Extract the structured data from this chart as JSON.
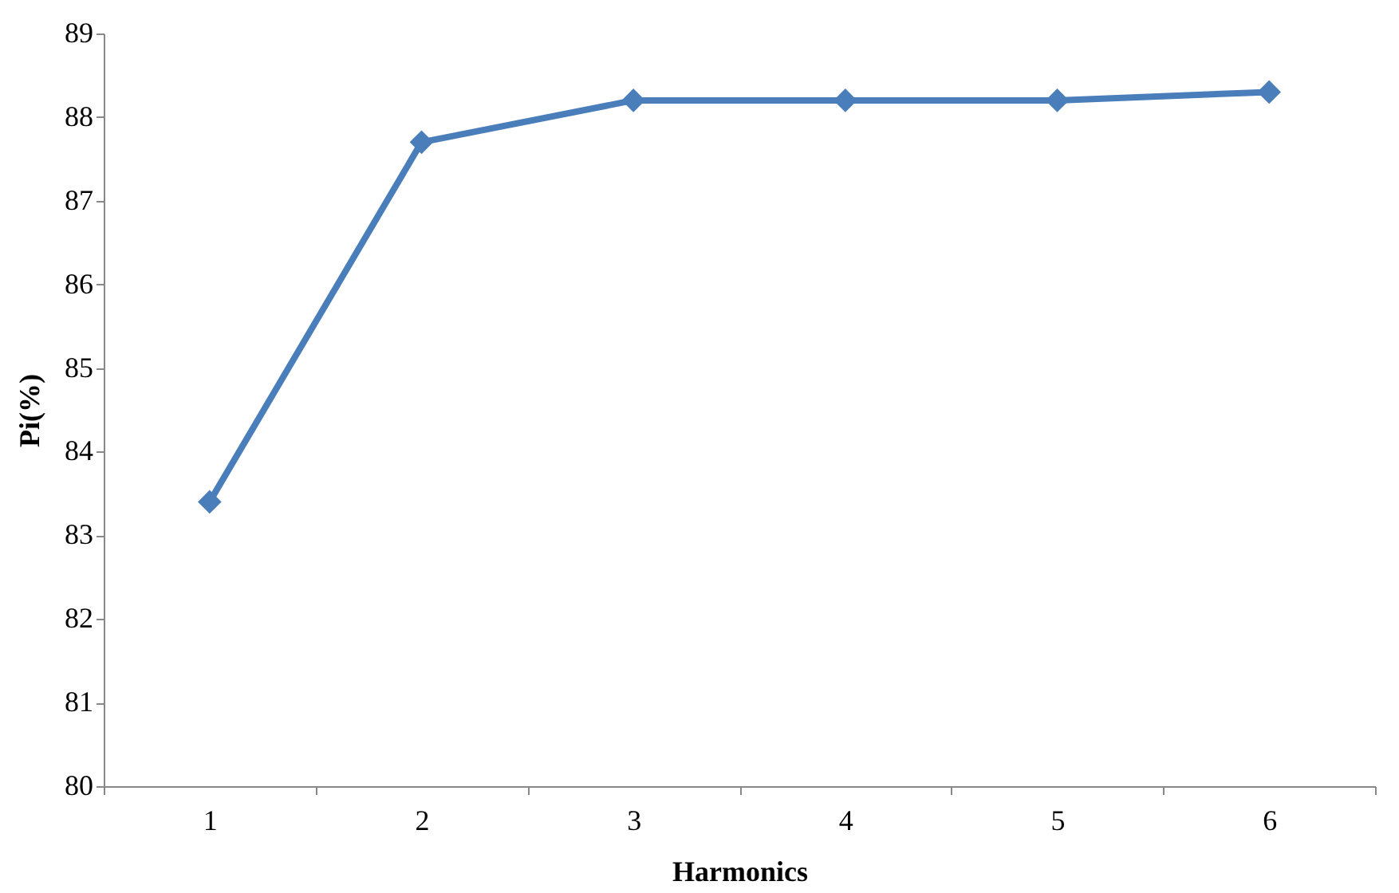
{
  "chart_data": {
    "type": "line",
    "xlabel": "Harmonics",
    "ylabel": "Pi(%)",
    "categories": [
      "1",
      "2",
      "3",
      "4",
      "5",
      "6"
    ],
    "series": [
      {
        "color": "#4a7ebb",
        "values": [
          83.4,
          87.7,
          88.2,
          88.2,
          88.2,
          88.3
        ]
      }
    ],
    "ylim": [
      80,
      89
    ],
    "yticks": [
      80,
      81,
      82,
      83,
      84,
      85,
      86,
      87,
      88,
      89
    ],
    "grid": false,
    "marker": "diamond",
    "line_style": "solid"
  }
}
